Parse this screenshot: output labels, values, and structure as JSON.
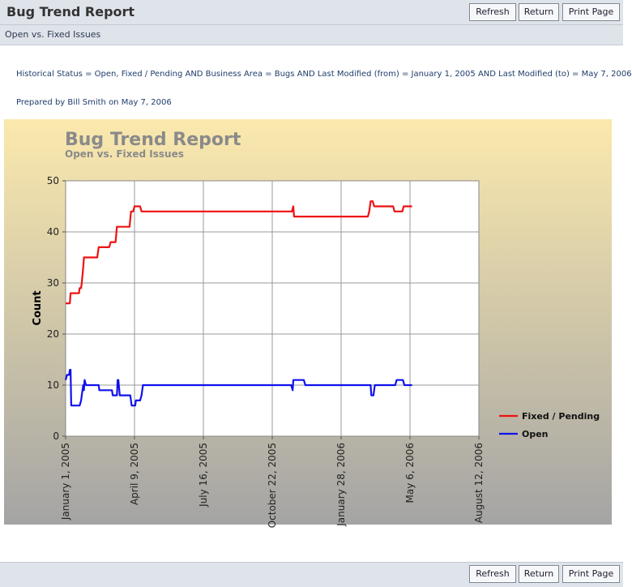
{
  "header": {
    "title": "Bug Trend Report",
    "subtitle": "Open vs. Fixed Issues",
    "buttons": {
      "refresh": "Refresh",
      "return": "Return",
      "print": "Print Page"
    }
  },
  "report": {
    "criteria": "Historical Status = Open, Fixed / Pending AND Business Area = Bugs AND Last Modified (from) = January 1, 2005 AND Last Modified (to) = May 7, 2006",
    "prepared": "Prepared by Bill Smith on May 7, 2006"
  },
  "footer": {
    "buttons": {
      "refresh": "Refresh",
      "return": "Return",
      "print": "Print Page"
    }
  },
  "colors": {
    "fixed": "#ee1111",
    "open": "#1111ee",
    "chart_bg_top": "#fbe9ad",
    "chart_bg_bottom": "#a4a4a4",
    "title_gray": "#8a8a8a"
  },
  "chart_data": {
    "type": "line",
    "title": "Bug Trend Report",
    "subtitle": "Open vs. Fixed Issues",
    "ylabel": "Count",
    "xlabel": "",
    "ylim": [
      0,
      50
    ],
    "yticks": [
      "0",
      "10",
      "20",
      "30",
      "40",
      "50"
    ],
    "xticks": [
      "January 1, 2005",
      "April 9, 2005",
      "July 16, 2005",
      "October 22, 2005",
      "January 28, 2006",
      "May 6, 2006",
      "August 12, 2006"
    ],
    "xlim_days": [
      0,
      588
    ],
    "grid": true,
    "legend_position": "right",
    "series": [
      {
        "name": "Fixed / Pending",
        "color": "#ee1111",
        "points": [
          [
            0,
            26
          ],
          [
            6,
            26
          ],
          [
            7,
            28
          ],
          [
            19,
            28
          ],
          [
            20,
            29
          ],
          [
            22,
            29
          ],
          [
            23,
            30
          ],
          [
            25,
            33
          ],
          [
            26,
            35
          ],
          [
            45,
            35
          ],
          [
            47,
            37
          ],
          [
            62,
            37
          ],
          [
            64,
            38
          ],
          [
            71,
            38
          ],
          [
            73,
            41
          ],
          [
            91,
            41
          ],
          [
            93,
            44
          ],
          [
            96,
            44
          ],
          [
            98,
            45
          ],
          [
            106,
            45
          ],
          [
            108,
            44
          ],
          [
            322,
            44
          ],
          [
            324,
            45
          ],
          [
            325,
            43
          ],
          [
            430,
            43
          ],
          [
            432,
            44
          ],
          [
            434,
            46
          ],
          [
            437,
            46
          ],
          [
            439,
            45
          ],
          [
            466,
            45
          ],
          [
            468,
            44
          ],
          [
            479,
            44
          ],
          [
            481,
            45
          ],
          [
            493,
            45
          ]
        ]
      },
      {
        "name": "Open",
        "color": "#1111ee",
        "points": [
          [
            0,
            11
          ],
          [
            2,
            12
          ],
          [
            5,
            12
          ],
          [
            6,
            13
          ],
          [
            7,
            13
          ],
          [
            8,
            6
          ],
          [
            20,
            6
          ],
          [
            22,
            7
          ],
          [
            23,
            8
          ],
          [
            25,
            10
          ],
          [
            26,
            9
          ],
          [
            27,
            11
          ],
          [
            29,
            10
          ],
          [
            47,
            10
          ],
          [
            48,
            9
          ],
          [
            66,
            9
          ],
          [
            67,
            8
          ],
          [
            73,
            8
          ],
          [
            74,
            11
          ],
          [
            75,
            11
          ],
          [
            77,
            8
          ],
          [
            92,
            8
          ],
          [
            94,
            6
          ],
          [
            99,
            6
          ],
          [
            100,
            7
          ],
          [
            106,
            7
          ],
          [
            108,
            8
          ],
          [
            110,
            10
          ],
          [
            321,
            10
          ],
          [
            323,
            9
          ],
          [
            324,
            11
          ],
          [
            339,
            11
          ],
          [
            341,
            10
          ],
          [
            434,
            10
          ],
          [
            435,
            8
          ],
          [
            438,
            8
          ],
          [
            440,
            10
          ],
          [
            469,
            10
          ],
          [
            471,
            11
          ],
          [
            480,
            11
          ],
          [
            482,
            10
          ],
          [
            493,
            10
          ]
        ]
      }
    ]
  }
}
